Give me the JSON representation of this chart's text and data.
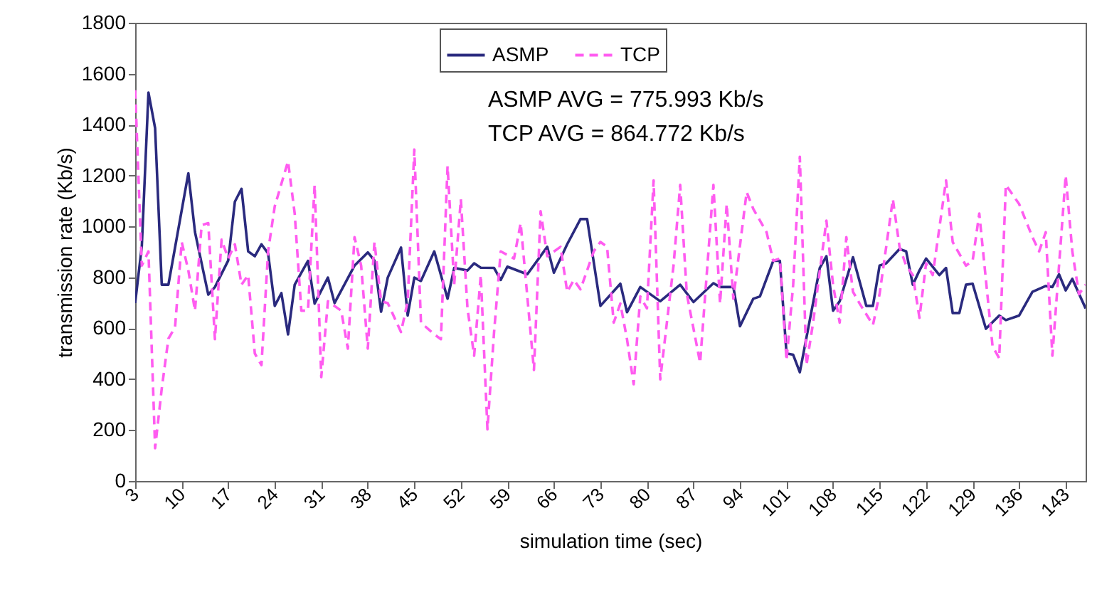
{
  "chart_data": {
    "type": "line",
    "xlabel": "simulation time (sec)",
    "ylabel": "transmission rate (Kb/s)",
    "annotations": [
      "ASMP AVG  = 775.993 Kb/s",
      "TCP    AVG = 864.772 Kb/s"
    ],
    "xlim": [
      3,
      146
    ],
    "xticks": [
      3,
      10,
      17,
      24,
      31,
      38,
      45,
      52,
      59,
      66,
      73,
      80,
      87,
      94,
      101,
      108,
      115,
      122,
      129,
      136,
      143
    ],
    "ylim": [
      0,
      1800
    ],
    "yticks": [
      0,
      200,
      400,
      600,
      800,
      1000,
      1200,
      1400,
      1600,
      1800
    ],
    "grid": false,
    "legend": "top",
    "marker": "none",
    "series": [
      {
        "name": "ASMP",
        "color": "#2a2a7e",
        "line_style": "solid",
        "x": [
          3,
          4,
          5,
          6,
          7,
          8,
          11,
          12,
          14,
          15,
          17,
          18,
          19,
          20,
          21,
          22,
          23,
          24,
          25,
          26,
          27,
          29,
          30,
          32,
          33,
          36,
          38,
          39,
          40,
          41,
          43,
          44,
          45,
          46,
          48,
          50,
          51,
          53,
          54,
          55,
          57,
          58,
          59,
          62,
          65,
          66,
          68,
          70,
          71,
          73,
          76,
          77,
          79,
          82,
          85,
          87,
          90,
          91,
          93,
          94,
          96,
          97,
          99,
          100,
          101,
          102,
          103,
          106,
          107,
          108,
          109,
          111,
          113,
          114,
          115,
          116,
          118,
          119,
          120,
          121,
          122,
          124,
          125,
          126,
          127,
          128,
          129,
          131,
          133,
          134,
          136,
          138,
          140,
          141,
          142,
          143,
          144,
          146
        ],
        "values": [
          699,
          922,
          1526,
          1386,
          771,
          771,
          1209,
          978,
          732,
          762,
          866,
          1097,
          1148,
          902,
          883,
          930,
          894,
          688,
          738,
          576,
          771,
          865,
          697,
          799,
          699,
          846,
          898,
          866,
          665,
          799,
          917,
          650,
          799,
          786,
          902,
          716,
          837,
          827,
          855,
          838,
          837,
          790,
          842,
          812,
          920,
          818,
          930,
          1029,
          1029,
          688,
          775,
          663,
          762,
          706,
          771,
          703,
          777,
          762,
          762,
          608,
          716,
          725,
          865,
          865,
          501,
          496,
          427,
          837,
          883,
          669,
          706,
          879,
          688,
          688,
          846,
          855,
          911,
          902,
          771,
          827,
          874,
          809,
          837,
          660,
          660,
          771,
          775,
          598,
          650,
          632,
          650,
          743,
          766,
          762,
          812,
          749,
          794,
          678
        ]
      },
      {
        "name": "TCP",
        "color": "#ff5cf0",
        "line_style": "dashed",
        "x": [
          3,
          4,
          5,
          6,
          7,
          8,
          9,
          10,
          11,
          12,
          13,
          14,
          15,
          16,
          17,
          18,
          19,
          20,
          21,
          22,
          23,
          24,
          26,
          27,
          28,
          29,
          30,
          31,
          32,
          34,
          35,
          36,
          37,
          38,
          39,
          40,
          41,
          43,
          44,
          45,
          46,
          48,
          49,
          50,
          51,
          52,
          53,
          54,
          55,
          56,
          57,
          58,
          60,
          61,
          63,
          64,
          65,
          67,
          68,
          69,
          70,
          72,
          73,
          74,
          75,
          76,
          77,
          78,
          79,
          80,
          81,
          82,
          84,
          85,
          86,
          88,
          90,
          91,
          92,
          93,
          95,
          96,
          98,
          99,
          100,
          101,
          102,
          103,
          104,
          105,
          107,
          108,
          109,
          110,
          111,
          112,
          114,
          115,
          117,
          118,
          119,
          120,
          121,
          122,
          123,
          125,
          126,
          128,
          129,
          130,
          132,
          133,
          134,
          136,
          138,
          139,
          140,
          141,
          143,
          144,
          145,
          146
        ],
        "values": [
          1535,
          846,
          902,
          129,
          363,
          559,
          604,
          939,
          827,
          669,
          1005,
          1013,
          557,
          948,
          874,
          930,
          771,
          809,
          501,
          455,
          902,
          1079,
          1256,
          1051,
          669,
          669,
          1163,
          408,
          706,
          669,
          520,
          958,
          846,
          520,
          939,
          706,
          699,
          585,
          706,
          1302,
          622,
          576,
          557,
          1237,
          771,
          1107,
          678,
          492,
          809,
          203,
          585,
          902,
          874,
          1013,
          436,
          1060,
          883,
          920,
          743,
          790,
          753,
          902,
          939,
          920,
          622,
          697,
          557,
          380,
          725,
          678,
          1181,
          399,
          846,
          1163,
          734,
          464,
          1163,
          697,
          1088,
          716,
          1135,
          1069,
          977,
          865,
          874,
          473,
          771,
          1274,
          455,
          622,
          1023,
          771,
          622,
          958,
          743,
          697,
          613,
          734,
          1107,
          920,
          846,
          809,
          641,
          855,
          809,
          1181,
          939,
          846,
          865,
          1051,
          529,
          482,
          1163,
          1088,
          958,
          902,
          977,
          492,
          1200,
          902,
          734,
          771
        ]
      }
    ]
  }
}
